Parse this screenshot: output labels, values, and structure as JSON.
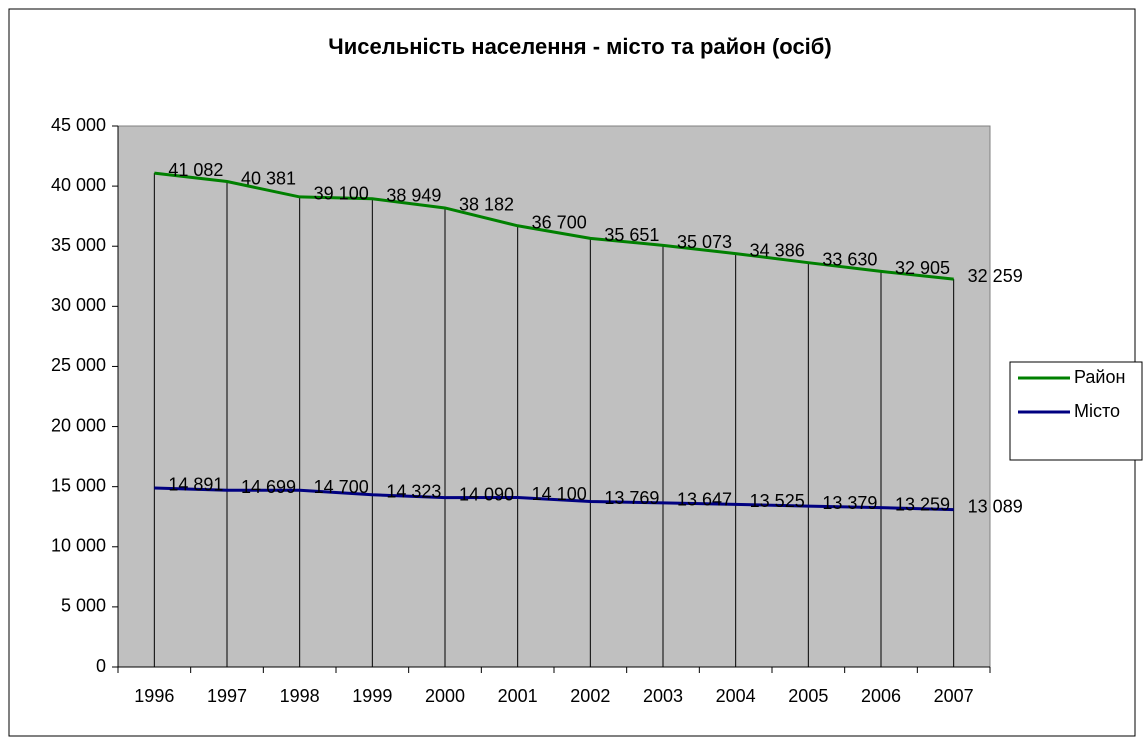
{
  "chart_data": {
    "type": "line",
    "title": "Чисельність населення - місто та район (осіб)",
    "categories": [
      "1996",
      "1997",
      "1998",
      "1999",
      "2000",
      "2001",
      "2002",
      "2003",
      "2004",
      "2005",
      "2006",
      "2007"
    ],
    "series": [
      {
        "name": "Район",
        "color": "#008000",
        "values": [
          41082,
          40381,
          39100,
          38949,
          38182,
          36700,
          35651,
          35073,
          34386,
          33630,
          32905,
          32259
        ],
        "value_labels": [
          "41 082",
          "40 381",
          "39 100",
          "38 949",
          "38 182",
          "36 700",
          "35 651",
          "35 073",
          "34 386",
          "33 630",
          "32 905",
          "32 259"
        ]
      },
      {
        "name": "Місто",
        "color": "#000080",
        "values": [
          14891,
          14699,
          14700,
          14323,
          14090,
          14100,
          13769,
          13647,
          13525,
          13379,
          13259,
          13089
        ],
        "value_labels": [
          "14 891",
          "14 699",
          "14 700",
          "14 323",
          "14 090",
          "14 100",
          "13 769",
          "13 647",
          "13 525",
          "13 379",
          "13 259",
          "13 089"
        ]
      }
    ],
    "ylim": [
      0,
      45000
    ],
    "yticks": [
      0,
      {
        "value": 5000,
        "label": "5 000"
      },
      {
        "value": 10000,
        "label": "10 000"
      },
      {
        "value": 15000,
        "label": "15 000"
      },
      {
        "value": 20000,
        "label": "20 000"
      },
      {
        "value": 25000,
        "label": "25 000"
      },
      {
        "value": 30000,
        "label": "30 000"
      },
      {
        "value": 35000,
        "label": "35 000"
      },
      {
        "value": 40000,
        "label": "40 000"
      },
      {
        "value": 45000,
        "label": "45 000"
      }
    ],
    "grid": false,
    "drop_lines": true,
    "legend": "right"
  }
}
